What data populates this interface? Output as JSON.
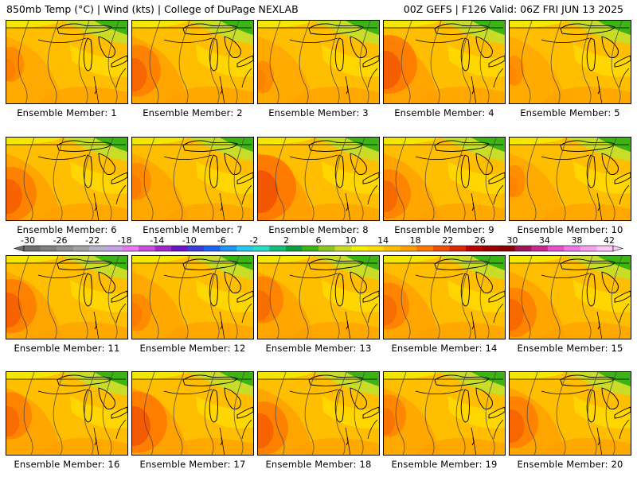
{
  "header": {
    "left": "850mb Temp (°C) | Wind (kts) | College of DuPage NEXLAB",
    "right": "00Z GEFS | F126 Valid: 06Z FRI JUN 13 2025"
  },
  "members": [
    {
      "label": "Ensemble Member: 1",
      "hot": 0.2
    },
    {
      "label": "Ensemble Member: 2",
      "hot": 0.55
    },
    {
      "label": "Ensemble Member: 3",
      "hot": 0.15
    },
    {
      "label": "Ensemble Member: 4",
      "hot": 0.7
    },
    {
      "label": "Ensemble Member: 5",
      "hot": 0.1
    },
    {
      "label": "Ensemble Member: 6",
      "hot": 0.6
    },
    {
      "label": "Ensemble Member: 7",
      "hot": 0.25
    },
    {
      "label": "Ensemble Member: 8",
      "hot": 0.85
    },
    {
      "label": "Ensemble Member: 9",
      "hot": 0.5
    },
    {
      "label": "Ensemble Member: 10",
      "hot": 0.15
    },
    {
      "label": "Ensemble Member: 11",
      "hot": 0.6
    },
    {
      "label": "Ensemble Member: 12",
      "hot": 0.25
    },
    {
      "label": "Ensemble Member: 13",
      "hot": 0.45
    },
    {
      "label": "Ensemble Member: 14",
      "hot": 0.45
    },
    {
      "label": "Ensemble Member: 15",
      "hot": 0.5
    },
    {
      "label": "Ensemble Member: 16",
      "hot": 0.45
    },
    {
      "label": "Ensemble Member: 17",
      "hot": 0.75
    },
    {
      "label": "Ensemble Member: 18",
      "hot": 0.6
    },
    {
      "label": "Ensemble Member: 19",
      "hot": 0.35
    },
    {
      "label": "Ensemble Member: 20",
      "hot": 0.55
    }
  ],
  "colorbar": {
    "labels": [
      "-30",
      "-26",
      "-22",
      "-18",
      "-14",
      "-10",
      "-6",
      "-2",
      "2",
      "6",
      "10",
      "14",
      "18",
      "22",
      "26",
      "30",
      "34",
      "38",
      "42"
    ],
    "colors": [
      "#6e6e6e",
      "#7f7f7f",
      "#909090",
      "#a2a2a2",
      "#b4b4c8",
      "#c8a0e6",
      "#e678f0",
      "#c850dc",
      "#a028c8",
      "#6e14c8",
      "#3c3cdc",
      "#1e64f0",
      "#1e96f0",
      "#28c8f0",
      "#28dcc8",
      "#14be78",
      "#0aa03c",
      "#3cb414",
      "#8cc81e",
      "#c8dc28",
      "#f0f000",
      "#ffdc00",
      "#ffbe00",
      "#ffa000",
      "#ff7800",
      "#f05000",
      "#dc2800",
      "#be0000",
      "#a00000",
      "#8c0000",
      "#a0145a",
      "#c8288c",
      "#e650c8",
      "#f078e6",
      "#f8a0f0",
      "#fcc8f8"
    ]
  }
}
